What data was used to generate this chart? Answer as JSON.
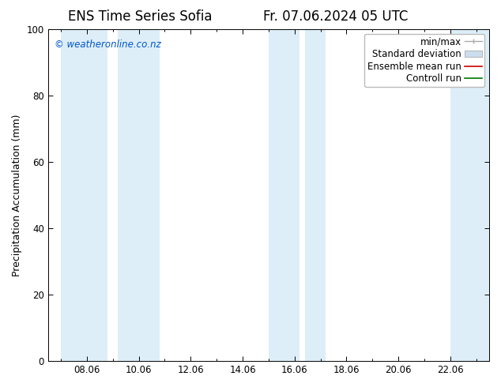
{
  "title_left": "ENS Time Series Sofia",
  "title_right": "Fr. 07.06.2024 05 UTC",
  "ylabel": "Precipitation Accumulation (mm)",
  "ylim": [
    0,
    100
  ],
  "yticks": [
    0,
    20,
    40,
    60,
    80,
    100
  ],
  "xtick_labels": [
    "08.06",
    "10.06",
    "12.06",
    "14.06",
    "16.06",
    "18.06",
    "20.06",
    "22.06"
  ],
  "background_color": "#ffffff",
  "plot_bg_color": "#ffffff",
  "shaded_color": "#ddeef8",
  "shaded_intervals": [
    [
      7.0,
      8.8
    ],
    [
      9.2,
      10.8
    ],
    [
      15.0,
      16.2
    ],
    [
      16.4,
      17.2
    ],
    [
      22.0,
      23.5
    ]
  ],
  "x_min": 6.5,
  "x_max": 23.5,
  "watermark_text": "© weatheronline.co.nz",
  "watermark_color": "#0055cc",
  "title_fontsize": 12,
  "axis_label_fontsize": 9,
  "tick_fontsize": 8.5,
  "legend_fontsize": 8.5
}
